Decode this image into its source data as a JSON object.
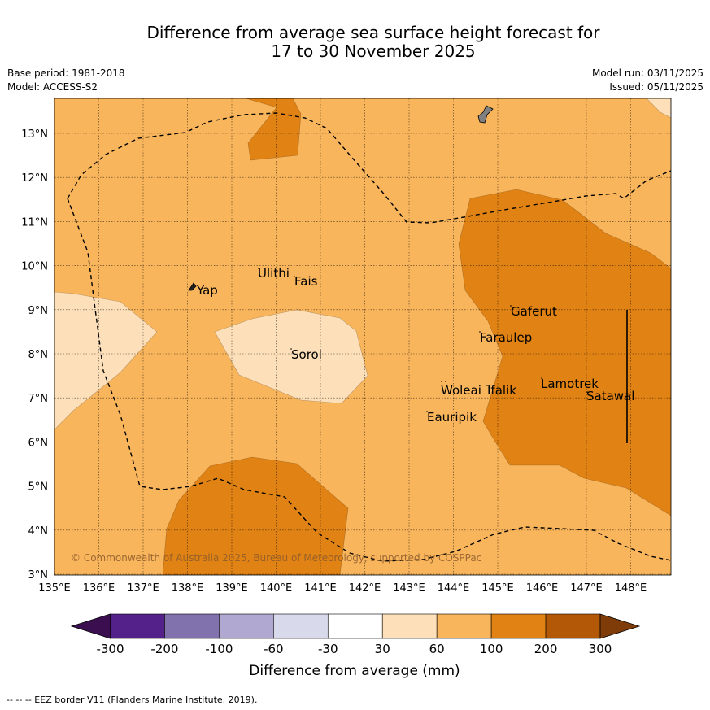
{
  "title_line1": "Difference from average sea surface height forecast for",
  "title_line2": "17 to 30 November 2025",
  "base_period": "Base period: 1981-2018",
  "model": "Model: ACCESS-S2",
  "model_run": "Model run: 03/11/2025",
  "issued": "Issued: 05/11/2025",
  "copyright": "© Commonwealth of Australia 2025, Bureau of Meteorology, supported by COSPPac",
  "lon_labels": [
    "135°E",
    "136°E",
    "137°E",
    "138°E",
    "139°E",
    "140°E",
    "141°E",
    "142°E",
    "143°E",
    "144°E",
    "145°E",
    "146°E",
    "147°E",
    "148°E"
  ],
  "lat_labels": [
    "3°N",
    "4°N",
    "5°N",
    "6°N",
    "7°N",
    "8°N",
    "9°N",
    "10°N",
    "11°N",
    "12°N",
    "13°N"
  ],
  "places": {
    "yap": "Yap",
    "ulithi": "Ulithi",
    "fais": "Fais",
    "sorol": "Sorol",
    "gaferut": "Gaferut",
    "faraulep": "Faraulep",
    "woleai": "Woleai",
    "ifalik": "Ifalik",
    "eauripik": "Eauripik",
    "lamotrek": "Lamotrek",
    "satawal": "Satawal"
  },
  "legend": {
    "title": "Difference from average (mm)",
    "ticks": [
      "-300",
      "-200",
      "-100",
      "-60",
      "-30",
      "30",
      "60",
      "100",
      "200",
      "300"
    ],
    "colors": [
      "#3b0f4f",
      "#54218a",
      "#8172ad",
      "#b1a8d2",
      "#d9d9ec",
      "#ffffff",
      "#fde0b9",
      "#f9b55c",
      "#e08214",
      "#b35806",
      "#7f3b08"
    ]
  },
  "colors": {
    "base": "#f9b55c",
    "light": "#fde0b9",
    "dark": "#e08214",
    "land": "#808080"
  },
  "footnote": "--  --  -- EEZ border V11 (Flanders Marine Institute, 2019)."
}
